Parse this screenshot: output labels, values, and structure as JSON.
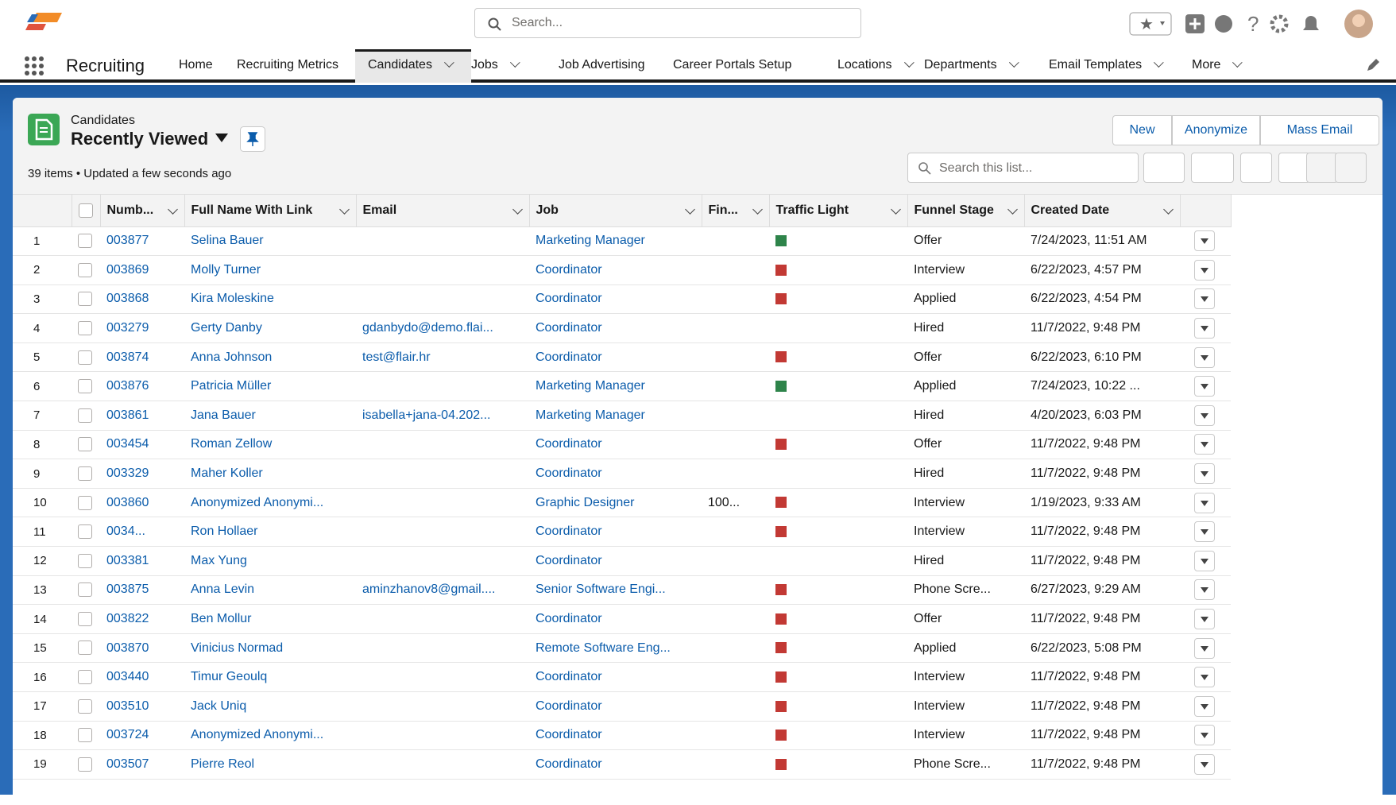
{
  "header": {
    "search_placeholder": "Search...",
    "app_name": "Recruiting",
    "nav": [
      "Home",
      "Recruiting Metrics",
      "Candidates",
      "Jobs",
      "Job Advertising",
      "Career Portals Setup",
      "Locations",
      "Departments",
      "Email Templates",
      "More"
    ],
    "nav_dropdown": [
      false,
      false,
      true,
      true,
      false,
      false,
      true,
      true,
      true,
      true
    ],
    "active_nav": 2
  },
  "list": {
    "object": "Candidates",
    "view": "Recently Viewed",
    "buttons": [
      "New",
      "Anonymize",
      "Mass Email"
    ],
    "status": "39 items • Updated a few seconds ago",
    "search_placeholder": "Search this list..."
  },
  "table": {
    "columns": [
      "Numb...",
      "Full Name With Link",
      "Email",
      "Job",
      "Fin...",
      "Traffic Light",
      "Funnel Stage",
      "Created Date"
    ],
    "rows": [
      [
        "1",
        "003877",
        "Selina Bauer",
        null,
        "Marketing Manager",
        null,
        "#2e844a",
        "Offer",
        "7/24/2023, 11:51 AM"
      ],
      [
        "2",
        "003869",
        "Molly Turner",
        null,
        "Coordinator",
        null,
        "#c23934",
        "Interview",
        "6/22/2023, 4:57 PM"
      ],
      [
        "3",
        "003868",
        "Kira Moleskine",
        null,
        "Coordinator",
        null,
        "#c23934",
        "Applied",
        "6/22/2023, 4:54 PM"
      ],
      [
        "4",
        "003279",
        "Gerty Danby",
        "gdanbydo@demo.flai...",
        "Coordinator",
        null,
        null,
        "Hired",
        "11/7/2022, 9:48 PM"
      ],
      [
        "5",
        "003874",
        "Anna Johnson",
        "test@flair.hr",
        "Coordinator",
        null,
        "#c23934",
        "Offer",
        "6/22/2023, 6:10 PM"
      ],
      [
        "6",
        "003876",
        "Patricia Müller",
        null,
        "Marketing Manager",
        null,
        "#2e844a",
        "Applied",
        "7/24/2023, 10:22 ..."
      ],
      [
        "7",
        "003861",
        "Jana Bauer",
        "isabella+jana-04.202...",
        "Marketing Manager",
        null,
        null,
        "Hired",
        "4/20/2023, 6:03 PM"
      ],
      [
        "8",
        "003454",
        "Roman Zellow",
        null,
        "Coordinator",
        null,
        "#c23934",
        "Offer",
        "11/7/2022, 9:48 PM"
      ],
      [
        "9",
        "003329",
        "Maher Koller",
        null,
        "Coordinator",
        null,
        null,
        "Hired",
        "11/7/2022, 9:48 PM"
      ],
      [
        "10",
        "003860",
        "Anonymized Anonymi...",
        null,
        "Graphic Designer",
        "100...",
        "#c23934",
        "Interview",
        "1/19/2023, 9:33 AM"
      ],
      [
        "11",
        "0034...",
        "Ron Hollaer",
        null,
        "Coordinator",
        null,
        "#c23934",
        "Interview",
        "11/7/2022, 9:48 PM"
      ],
      [
        "12",
        "003381",
        "Max Yung",
        null,
        "Coordinator",
        null,
        null,
        "Hired",
        "11/7/2022, 9:48 PM"
      ],
      [
        "13",
        "003875",
        "Anna Levin",
        "aminzhanov8@gmail....",
        "Senior Software Engi...",
        null,
        "#c23934",
        "Phone Scre...",
        "6/27/2023, 9:29 AM"
      ],
      [
        "14",
        "003822",
        "Ben Mollur",
        null,
        "Coordinator",
        null,
        "#c23934",
        "Offer",
        "11/7/2022, 9:48 PM"
      ],
      [
        "15",
        "003870",
        "Vinicius Normad",
        null,
        "Remote Software Eng...",
        null,
        "#c23934",
        "Applied",
        "6/22/2023, 5:08 PM"
      ],
      [
        "16",
        "003440",
        "Timur Geoulq",
        null,
        "Coordinator",
        null,
        "#c23934",
        "Interview",
        "11/7/2022, 9:48 PM"
      ],
      [
        "17",
        "003510",
        "Jack Uniq",
        null,
        "Coordinator",
        null,
        "#c23934",
        "Interview",
        "11/7/2022, 9:48 PM"
      ],
      [
        "18",
        "003724",
        "Anonymized Anonymi...",
        null,
        "Coordinator",
        null,
        "#c23934",
        "Interview",
        "11/7/2022, 9:48 PM"
      ],
      [
        "19",
        "003507",
        "Pierre Reol",
        null,
        "Coordinator",
        null,
        "#c23934",
        "Phone Scre...",
        "11/7/2022, 9:48 PM"
      ]
    ]
  }
}
